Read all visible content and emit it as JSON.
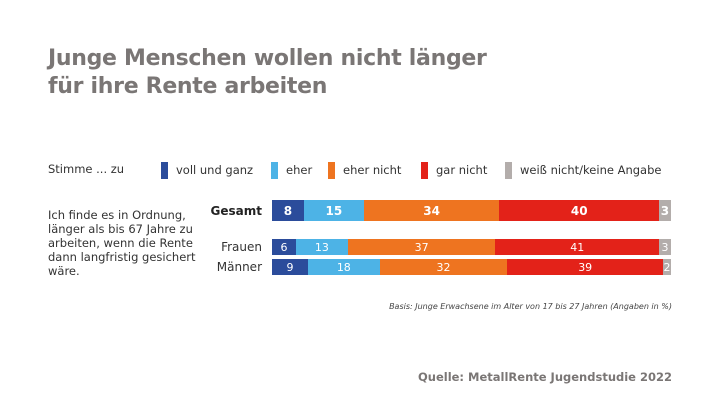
{
  "title_lines": [
    "Junge Menschen wollen nicht länger",
    "für ihre Rente arbeiten"
  ],
  "chart_data": {
    "type": "bar",
    "orientation": "horizontal-stacked-100",
    "title": "Junge Menschen wollen nicht länger für ihre Rente arbeiten",
    "question": "Ich finde es in Ordnung, länger als bis 67 Jahre zu arbeiten, wenn die Rente dann langfristig gesichert wäre.",
    "legend_lead": "Stimme ... zu",
    "categories": [
      "Gesamt",
      "Frauen",
      "Männer"
    ],
    "series": [
      {
        "name": "voll und ganz",
        "color": "#2b4c9b",
        "values": [
          8,
          6,
          9
        ]
      },
      {
        "name": "eher",
        "color": "#4db3e6",
        "values": [
          15,
          13,
          18
        ]
      },
      {
        "name": "eher nicht",
        "color": "#ee7420",
        "values": [
          34,
          37,
          32
        ]
      },
      {
        "name": "gar nicht",
        "color": "#e32219",
        "values": [
          40,
          41,
          39
        ]
      },
      {
        "name": "weiß nicht/keine Angabe",
        "color": "#b3adab",
        "values": [
          3,
          3,
          2
        ]
      }
    ],
    "xlim": [
      0,
      100
    ],
    "unit": "%",
    "note": "Basis: Junge Erwachsene im Alter von 17 bis 27 Jahren (Angaben in %)",
    "source": "Quelle: MetallRente Jugendstudie 2022"
  }
}
